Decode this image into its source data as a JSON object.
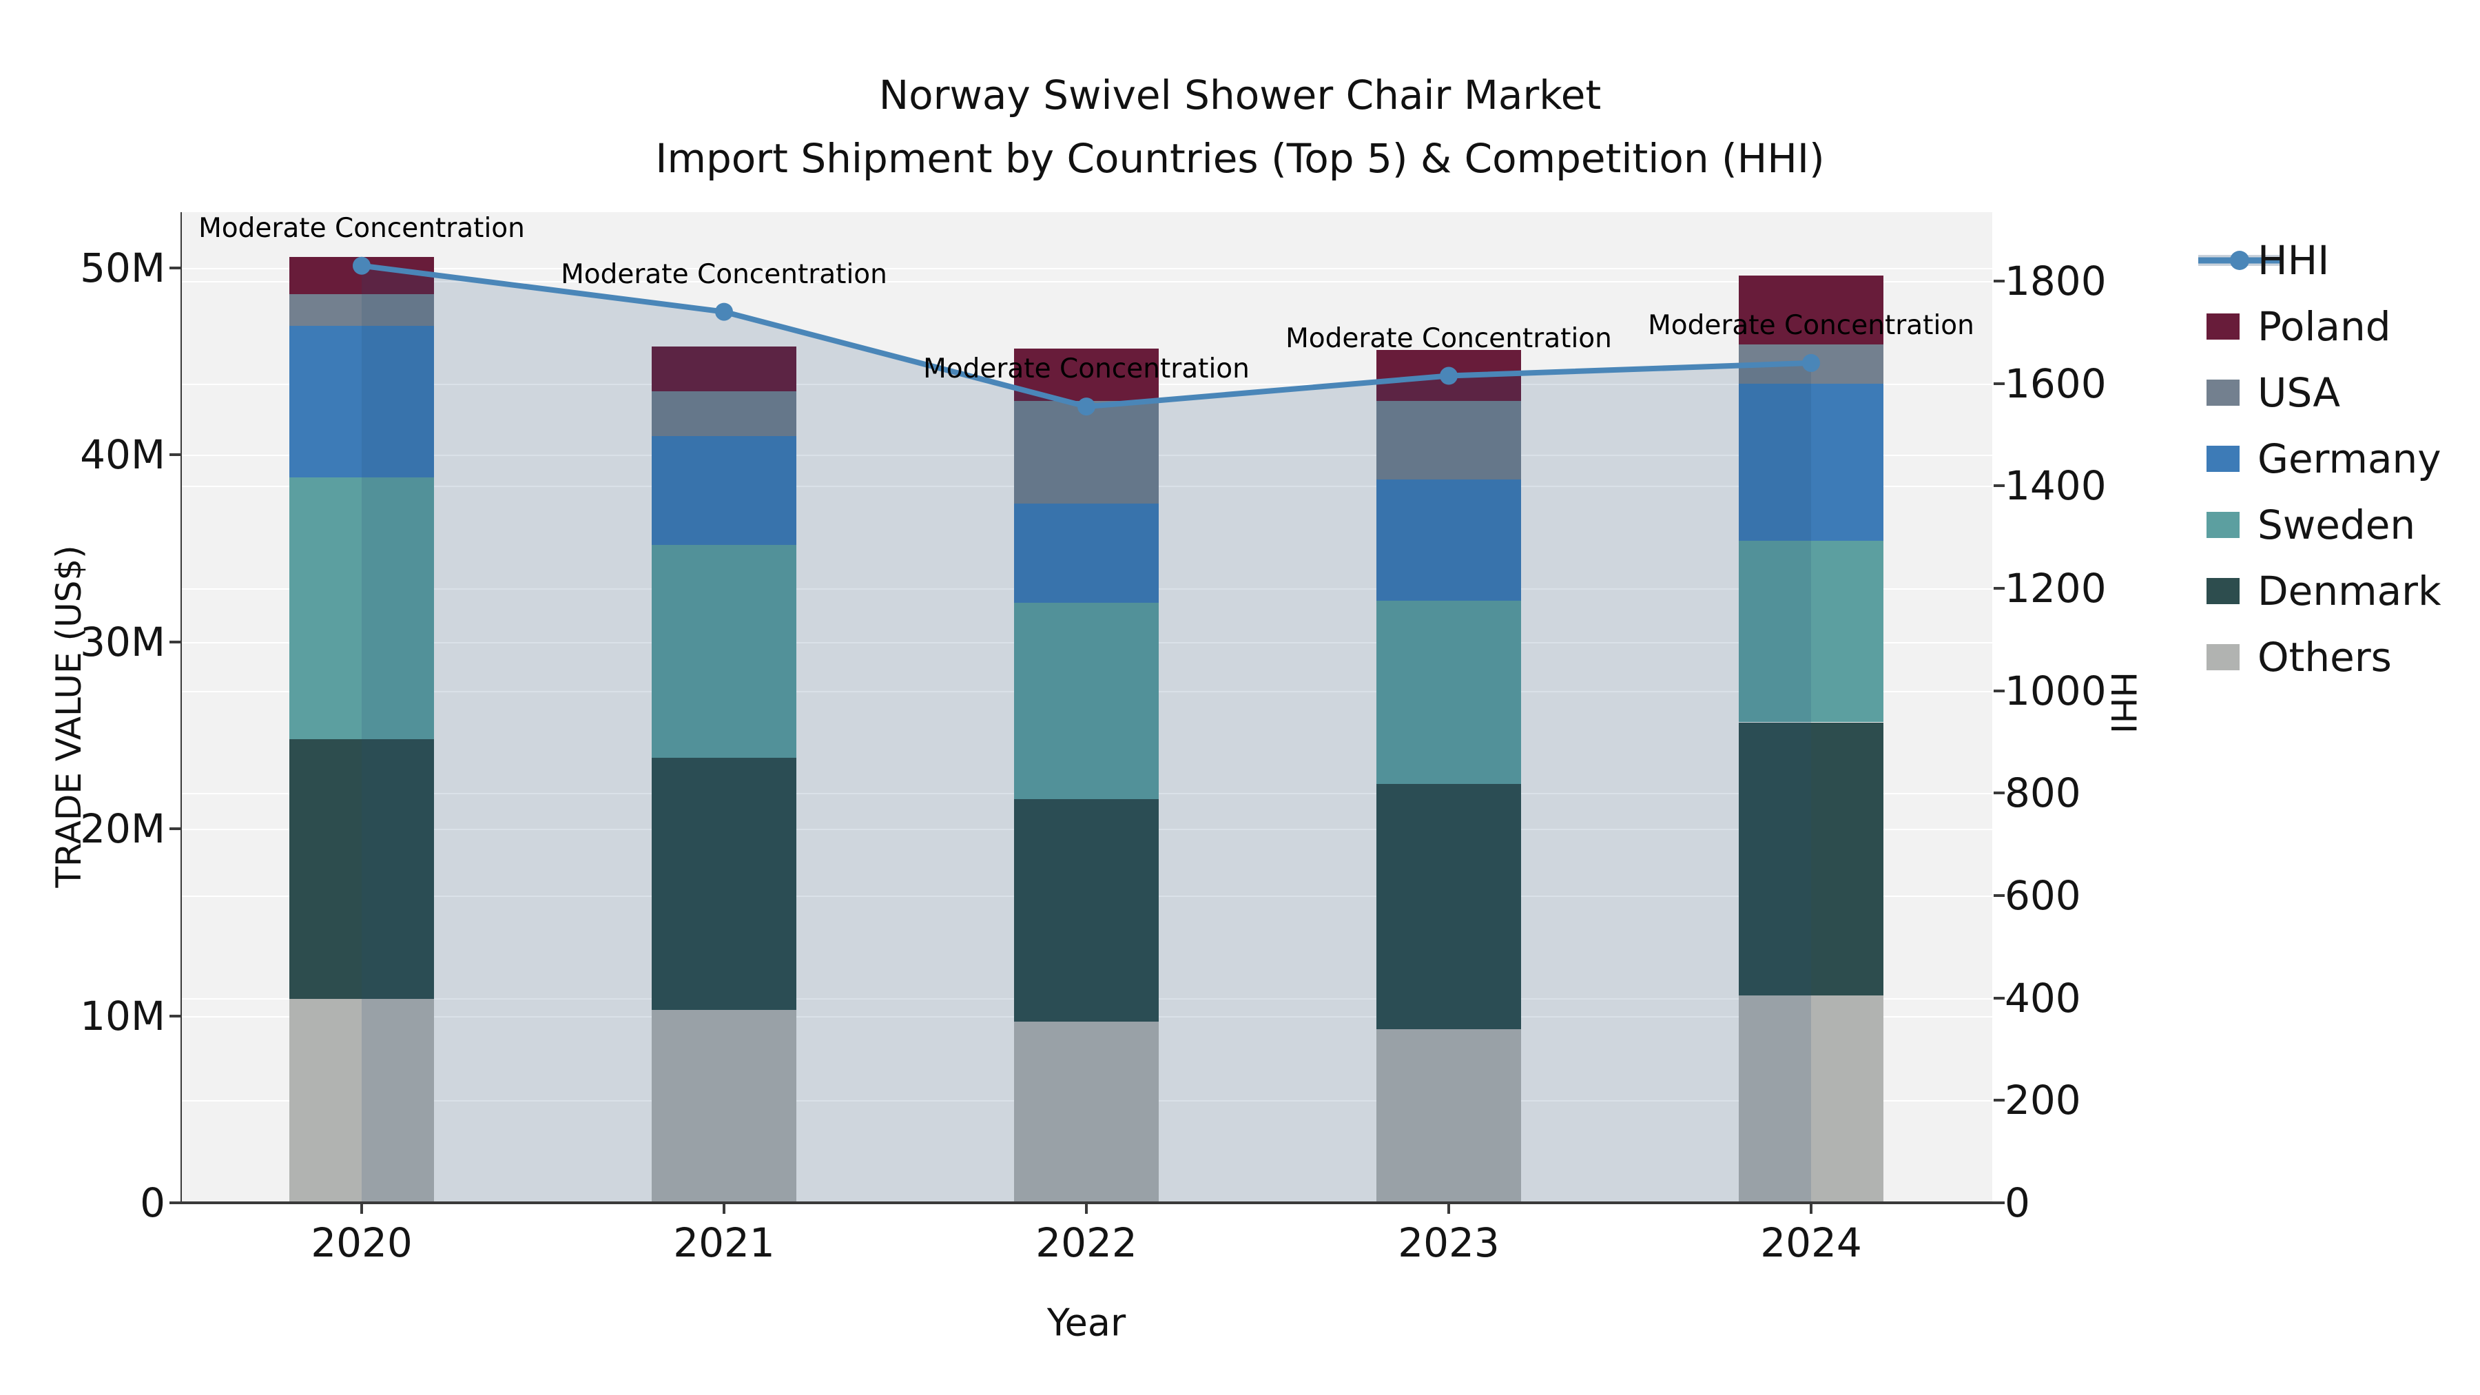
{
  "figure": {
    "title_line1": "Norway Swivel Shower Chair Market",
    "title_line2": "Import Shipment by Countries (Top 5) & Competition (HHI)",
    "x_axis_label": "Year",
    "y_axis_left_label": "TRADE VALUE (US$)",
    "y_axis_right_label": "HHI"
  },
  "chart_data": {
    "type": "bar",
    "subtype": "stacked-bars-with-line-on-secondary-axis",
    "title": "Norway Swivel Shower Chair Market — Import Shipment by Countries (Top 5) & Competition (HHI)",
    "xlabel": "Year",
    "ylabel_left": "TRADE VALUE (US$)",
    "ylabel_right": "HHI",
    "categories": [
      "2020",
      "2021",
      "2022",
      "2023",
      "2024"
    ],
    "value_unit": "US$ millions",
    "series": [
      {
        "name": "Poland",
        "values": [
          2.0,
          2.4,
          2.8,
          2.7,
          3.7
        ],
        "color": "#681c3a"
      },
      {
        "name": "USA",
        "values": [
          1.7,
          2.4,
          5.5,
          4.2,
          2.1
        ],
        "color": "#73808f"
      },
      {
        "name": "Germany",
        "values": [
          8.1,
          5.8,
          5.3,
          6.5,
          8.4
        ],
        "color": "#3d7bb7"
      },
      {
        "name": "Sweden",
        "values": [
          14.0,
          11.4,
          10.5,
          9.8,
          9.7
        ],
        "color": "#5c9fa0"
      },
      {
        "name": "Denmark",
        "values": [
          13.9,
          13.5,
          11.9,
          13.1,
          14.6
        ],
        "color": "#2d4d4e"
      },
      {
        "name": "Others",
        "values": [
          10.9,
          10.3,
          9.7,
          9.3,
          11.1
        ],
        "color": "#b1b3b1"
      }
    ],
    "stack_order_bottom_to_top": [
      "Others",
      "Denmark",
      "Sweden",
      "Germany",
      "USA",
      "Poland"
    ],
    "line_series": {
      "name": "HHI",
      "axis": "right",
      "values": [
        1830,
        1740,
        1555,
        1615,
        1640
      ],
      "color": "#4a86b8",
      "area_fill": "rgba(35,75,120,0.17)"
    },
    "annotations": [
      {
        "category": "2020",
        "text": "Moderate Concentration"
      },
      {
        "category": "2021",
        "text": "Moderate Concentration"
      },
      {
        "category": "2022",
        "text": "Moderate Concentration"
      },
      {
        "category": "2023",
        "text": "Moderate Concentration"
      },
      {
        "category": "2024",
        "text": "Moderate Concentration"
      }
    ],
    "left_axis": {
      "tick_labels": [
        "0",
        "10M",
        "20M",
        "30M",
        "40M",
        "50M"
      ],
      "tick_values": [
        0,
        10,
        20,
        30,
        40,
        50
      ],
      "range": [
        0,
        53
      ]
    },
    "right_axis": {
      "tick_labels": [
        "0",
        "200",
        "400",
        "600",
        "800",
        "1000",
        "1200",
        "1400",
        "1600",
        "1800"
      ],
      "tick_values": [
        0,
        200,
        400,
        600,
        800,
        1000,
        1200,
        1400,
        1600,
        1800
      ],
      "range": [
        0,
        1935
      ]
    },
    "legend": {
      "position": "right",
      "entries": [
        {
          "label": "HHI",
          "type": "line",
          "color": "#4a86b8"
        },
        {
          "label": "Poland",
          "type": "patch",
          "color": "#681c3a"
        },
        {
          "label": "USA",
          "type": "patch",
          "color": "#73808f"
        },
        {
          "label": "Germany",
          "type": "patch",
          "color": "#3d7bb7"
        },
        {
          "label": "Sweden",
          "type": "patch",
          "color": "#5c9fa0"
        },
        {
          "label": "Denmark",
          "type": "patch",
          "color": "#2d4d4e"
        },
        {
          "label": "Others",
          "type": "patch",
          "color": "#b1b3b1"
        }
      ]
    },
    "grid": true,
    "plot_background": "#f2f2f2",
    "grid_color": "#ffffff"
  }
}
